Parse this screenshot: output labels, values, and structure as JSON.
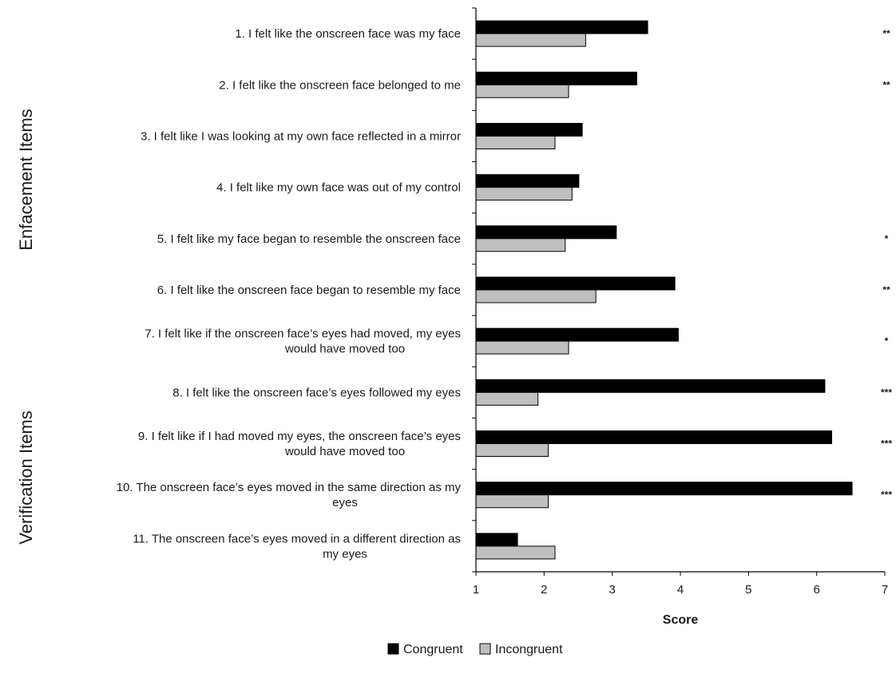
{
  "chart_data": {
    "type": "bar",
    "orientation": "horizontal",
    "xlabel": "Score",
    "xlim": [
      1,
      7
    ],
    "xticks": [
      1,
      2,
      3,
      4,
      5,
      6,
      7
    ],
    "grid": false,
    "legend_position": "bottom",
    "group_labels": [
      {
        "label": "Enfacement Items",
        "items": [
          1,
          2,
          3,
          4,
          5,
          6,
          7
        ]
      },
      {
        "label": "Verification Items",
        "items": [
          8,
          9,
          10,
          11
        ]
      }
    ],
    "categories": [
      [
        "1. I felt like the onscreen face was my face"
      ],
      [
        "2. I felt like the onscreen face belonged to me"
      ],
      [
        "3. I felt like I was looking at my own face reflected in a mirror"
      ],
      [
        "4. I felt like my own face was out of my control"
      ],
      [
        "5. I felt like my face began to resemble the onscreen face"
      ],
      [
        "6. I felt like the onscreen face began to resemble my face"
      ],
      [
        "7. I felt like if the onscreen face’s eyes had moved, my eyes",
        "would have moved too"
      ],
      [
        "8. I felt like the onscreen face’s eyes followed my eyes"
      ],
      [
        "9. I felt like if I had moved my eyes, the onscreen face’s eyes",
        "would have moved too"
      ],
      [
        "10. The onscreen face’s eyes moved in the same direction as my",
        "eyes"
      ],
      [
        "11. The onscreen face’s eyes moved in a different direction as",
        "my eyes"
      ]
    ],
    "series": [
      {
        "name": "Congruent",
        "color": "#000000",
        "values": [
          3.52,
          3.36,
          2.56,
          2.51,
          3.06,
          3.92,
          3.97,
          6.12,
          6.22,
          6.52,
          1.61
        ]
      },
      {
        "name": "Incongruent",
        "color": "#bfbfbf",
        "values": [
          2.61,
          2.36,
          2.16,
          2.41,
          2.31,
          2.76,
          2.36,
          1.91,
          2.06,
          2.06,
          2.16
        ]
      }
    ],
    "significance": [
      "**",
      "**",
      "",
      "",
      "*",
      "**",
      "*",
      "***",
      "***",
      "***",
      ""
    ]
  }
}
